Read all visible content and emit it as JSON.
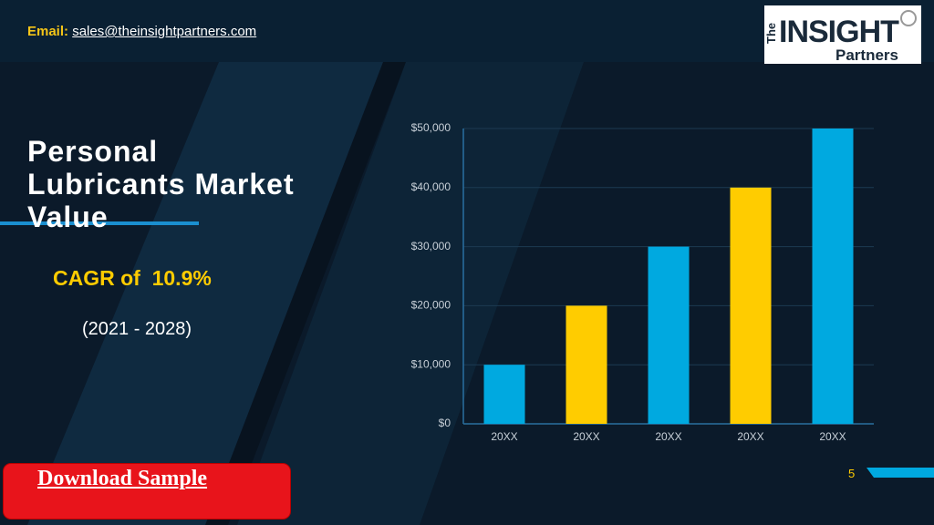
{
  "header": {
    "email_label": "Email:",
    "email": "sales@theinsightpartners.com"
  },
  "logo": {
    "the": "The",
    "insight": "INSIGHT",
    "partners": "Partners"
  },
  "title_lines": [
    "Personal",
    "Lubricants Market",
    "Value"
  ],
  "cagr": "CAGR of  10.9%",
  "period": "(2021 - 2028)",
  "button": "Download Sample",
  "page_number": "5",
  "chart_data": {
    "type": "bar",
    "categories": [
      "20XX",
      "20XX",
      "20XX",
      "20XX",
      "20XX"
    ],
    "values": [
      10000,
      20000,
      30000,
      40000,
      50000
    ],
    "colors": [
      "#00a9e0",
      "#ffcc00",
      "#00a9e0",
      "#ffcc00",
      "#00a9e0"
    ],
    "ylim": [
      0,
      50000
    ],
    "yticks": [
      {
        "value": 0,
        "label": "$0"
      },
      {
        "value": 10000,
        "label": "$10,000"
      },
      {
        "value": 20000,
        "label": "$20,000"
      },
      {
        "value": 30000,
        "label": "$30,000"
      },
      {
        "value": 40000,
        "label": "$40,000"
      },
      {
        "value": 50000,
        "label": "$50,000"
      }
    ],
    "grid": true
  }
}
